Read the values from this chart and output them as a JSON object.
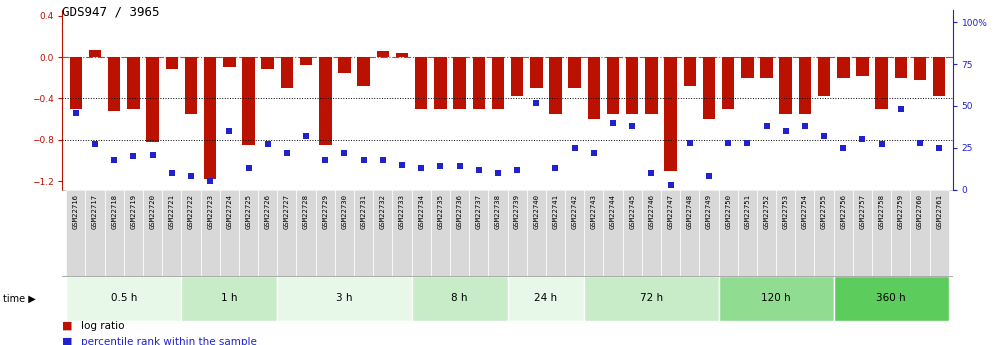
{
  "title": "GDS947 / 3965",
  "samples": [
    "GSM22716",
    "GSM22717",
    "GSM22718",
    "GSM22719",
    "GSM22720",
    "GSM22721",
    "GSM22722",
    "GSM22723",
    "GSM22724",
    "GSM22725",
    "GSM22726",
    "GSM22727",
    "GSM22728",
    "GSM22729",
    "GSM22730",
    "GSM22731",
    "GSM22732",
    "GSM22733",
    "GSM22734",
    "GSM22735",
    "GSM22736",
    "GSM22737",
    "GSM22738",
    "GSM22739",
    "GSM22740",
    "GSM22741",
    "GSM22742",
    "GSM22743",
    "GSM22744",
    "GSM22745",
    "GSM22746",
    "GSM22747",
    "GSM22748",
    "GSM22749",
    "GSM22750",
    "GSM22751",
    "GSM22752",
    "GSM22753",
    "GSM22754",
    "GSM22755",
    "GSM22756",
    "GSM22757",
    "GSM22758",
    "GSM22759",
    "GSM22760",
    "GSM22761"
  ],
  "log_ratio": [
    -0.5,
    0.07,
    -0.52,
    -0.5,
    -0.82,
    -0.12,
    -0.55,
    -1.18,
    -0.1,
    -0.85,
    -0.12,
    -0.3,
    -0.08,
    -0.85,
    -0.15,
    -0.28,
    0.06,
    0.04,
    -0.5,
    -0.5,
    -0.5,
    -0.5,
    -0.5,
    -0.38,
    -0.3,
    -0.55,
    -0.3,
    -0.6,
    -0.55,
    -0.55,
    -0.55,
    -1.1,
    -0.28,
    -0.6,
    -0.5,
    -0.2,
    -0.2,
    -0.55,
    -0.55,
    -0.38,
    -0.2,
    -0.18,
    -0.5,
    -0.2,
    -0.22,
    -0.38
  ],
  "pct_rank": [
    46,
    27,
    18,
    20,
    21,
    10,
    8,
    5,
    35,
    13,
    27,
    22,
    32,
    18,
    22,
    18,
    18,
    15,
    13,
    14,
    14,
    12,
    10,
    12,
    52,
    13,
    25,
    22,
    40,
    38,
    10,
    3,
    28,
    8,
    28,
    28,
    38,
    35,
    38,
    32,
    25,
    30,
    27,
    48,
    28,
    25
  ],
  "time_groups": [
    {
      "label": "0.5 h",
      "start": 0,
      "end": 6,
      "color": "#e8f8e8"
    },
    {
      "label": "1 h",
      "start": 6,
      "end": 11,
      "color": "#c8ecc8"
    },
    {
      "label": "3 h",
      "start": 11,
      "end": 18,
      "color": "#e8f8e8"
    },
    {
      "label": "8 h",
      "start": 18,
      "end": 23,
      "color": "#c8ecc8"
    },
    {
      "label": "24 h",
      "start": 23,
      "end": 27,
      "color": "#e8f8e8"
    },
    {
      "label": "72 h",
      "start": 27,
      "end": 34,
      "color": "#c8ecc8"
    },
    {
      "label": "120 h",
      "start": 34,
      "end": 40,
      "color": "#90dc90"
    },
    {
      "label": "360 h",
      "start": 40,
      "end": 46,
      "color": "#5ccc5c"
    }
  ],
  "bar_color": "#bb1100",
  "dot_color": "#2222cc",
  "ylim_left": [
    -1.28,
    0.45
  ],
  "ylim_right": [
    0,
    107
  ],
  "yticks_left": [
    0.4,
    0.0,
    -0.4,
    -0.8,
    -1.2
  ],
  "yticks_right": [
    0,
    25,
    50,
    75,
    100
  ],
  "ytick_labels_right": [
    "0",
    "25",
    "50",
    "75",
    "100%"
  ],
  "hlines_dotted": [
    -0.4,
    -0.8
  ],
  "hline_dashed": 0.0,
  "title_fontsize": 9,
  "tick_fontsize": 6.5,
  "bar_width": 0.65,
  "dot_size": 22
}
